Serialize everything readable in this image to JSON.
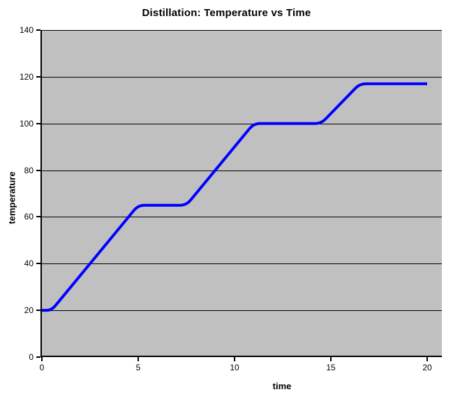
{
  "chart_data": {
    "type": "line",
    "title": "Distillation: Temperature vs Time",
    "xlabel": "time",
    "ylabel": "temperature",
    "x_ticks": [
      0,
      5,
      10,
      15,
      20
    ],
    "y_ticks": [
      0,
      20,
      40,
      60,
      80,
      100,
      120,
      140
    ],
    "xlim": [
      0,
      20.76
    ],
    "ylim": [
      0,
      140
    ],
    "grid": "horizontal-only",
    "legend": "none",
    "plot_background": "#C0C0C0",
    "page_background": "#FFFFFF",
    "gridline_color": "#000000",
    "axis_color": "#000000",
    "series": [
      {
        "name": "temperature",
        "color": "#0000FF",
        "stroke_width": 4,
        "smooth": true,
        "points": [
          [
            0,
            20
          ],
          [
            0.5,
            20
          ],
          [
            5,
            65
          ],
          [
            7.5,
            65
          ],
          [
            11,
            100
          ],
          [
            14.5,
            100
          ],
          [
            16.5,
            117
          ],
          [
            20,
            117
          ]
        ]
      }
    ]
  }
}
